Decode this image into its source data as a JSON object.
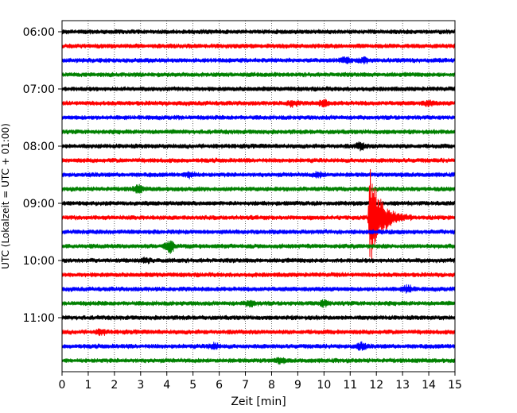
{
  "chart_data": {
    "type": "line",
    "subtype": "helicorder",
    "title": "",
    "xlabel": "Zeit  [min]",
    "ylabel": "UTC (Lokalzeit = UTC + 01:00)",
    "xlim": [
      0,
      15
    ],
    "x_ticks": [
      "0",
      "1",
      "2",
      "3",
      "4",
      "5",
      "6",
      "7",
      "8",
      "9",
      "10",
      "11",
      "12",
      "13",
      "14",
      "15"
    ],
    "y_ticks": [
      "06:00",
      "07:00",
      "08:00",
      "09:00",
      "10:00",
      "11:00"
    ],
    "trace_start": "06:00",
    "trace_interval_min": 15,
    "trace_count": 24,
    "trace_colors": [
      "#000000",
      "#ff0000",
      "#0000ff",
      "#008000"
    ],
    "grid": "vertical-dotted",
    "events": [
      {
        "trace": 2,
        "minute": 10.8,
        "amplitude": 0.5
      },
      {
        "trace": 2,
        "minute": 11.5,
        "amplitude": 0.4
      },
      {
        "trace": 5,
        "minute": 8.8,
        "amplitude": 0.5
      },
      {
        "trace": 5,
        "minute": 10.0,
        "amplitude": 0.5
      },
      {
        "trace": 5,
        "minute": 14.0,
        "amplitude": 0.4
      },
      {
        "trace": 8,
        "minute": 11.4,
        "amplitude": 0.6
      },
      {
        "trace": 10,
        "minute": 4.9,
        "amplitude": 0.5
      },
      {
        "trace": 10,
        "minute": 9.8,
        "amplitude": 0.4
      },
      {
        "trace": 11,
        "minute": 2.9,
        "amplitude": 0.6
      },
      {
        "trace": 13,
        "minute": 11.75,
        "amplitude": 3.5,
        "type": "earthquake"
      },
      {
        "trace": 15,
        "minute": 4.1,
        "amplitude": 1.2
      },
      {
        "trace": 16,
        "minute": 3.2,
        "amplitude": 0.4
      },
      {
        "trace": 18,
        "minute": 13.2,
        "amplitude": 0.6
      },
      {
        "trace": 19,
        "minute": 7.2,
        "amplitude": 0.5
      },
      {
        "trace": 19,
        "minute": 10.0,
        "amplitude": 0.5
      },
      {
        "trace": 21,
        "minute": 1.5,
        "amplitude": 0.4
      },
      {
        "trace": 22,
        "minute": 5.8,
        "amplitude": 0.5
      },
      {
        "trace": 22,
        "minute": 11.4,
        "amplitude": 0.6
      },
      {
        "trace": 23,
        "minute": 8.3,
        "amplitude": 0.4
      }
    ]
  }
}
